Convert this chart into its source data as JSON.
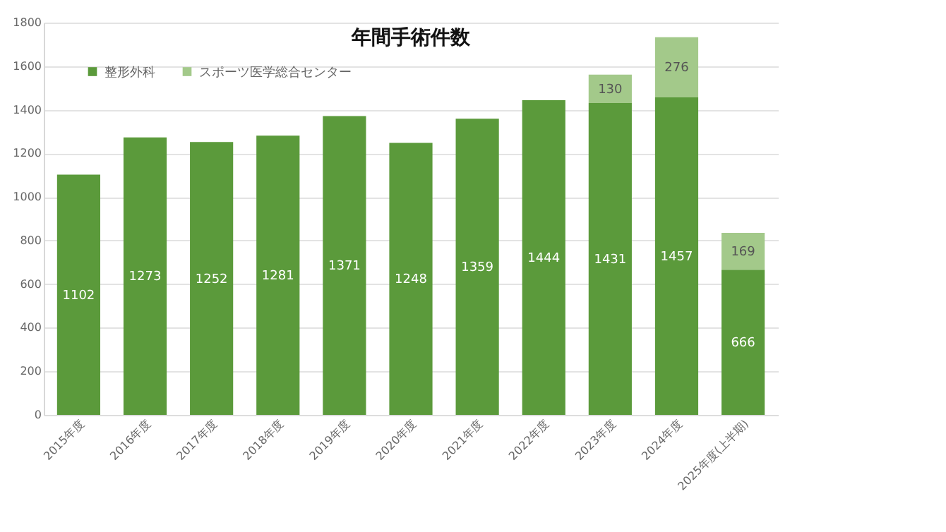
{
  "chart_data": {
    "type": "bar",
    "title": "年間手術件数",
    "stacked": true,
    "data_labels": true,
    "grid": "y",
    "legend": "top left",
    "categories": [
      "2015年度",
      "2016年度",
      "2017年度",
      "2018年度",
      "2019年度",
      "2020年度",
      "2021年度",
      "2022年度",
      "2023年度",
      "2024年度",
      "2025年度(上半期)"
    ],
    "series": [
      {
        "name": "整形外科",
        "color": "#5b9a3b",
        "values": [
          1102,
          1273,
          1252,
          1281,
          1371,
          1248,
          1359,
          1444,
          1431,
          1457,
          666
        ]
      },
      {
        "name": "スポーツ医学総合センター",
        "color": "#a3c98a",
        "values": [
          null,
          null,
          null,
          null,
          null,
          null,
          null,
          null,
          130,
          276,
          169
        ]
      }
    ],
    "ylim": [
      0,
      1800
    ],
    "yticks": [
      0,
      200,
      400,
      600,
      800,
      1000,
      1200,
      1400,
      1600,
      1800
    ]
  }
}
